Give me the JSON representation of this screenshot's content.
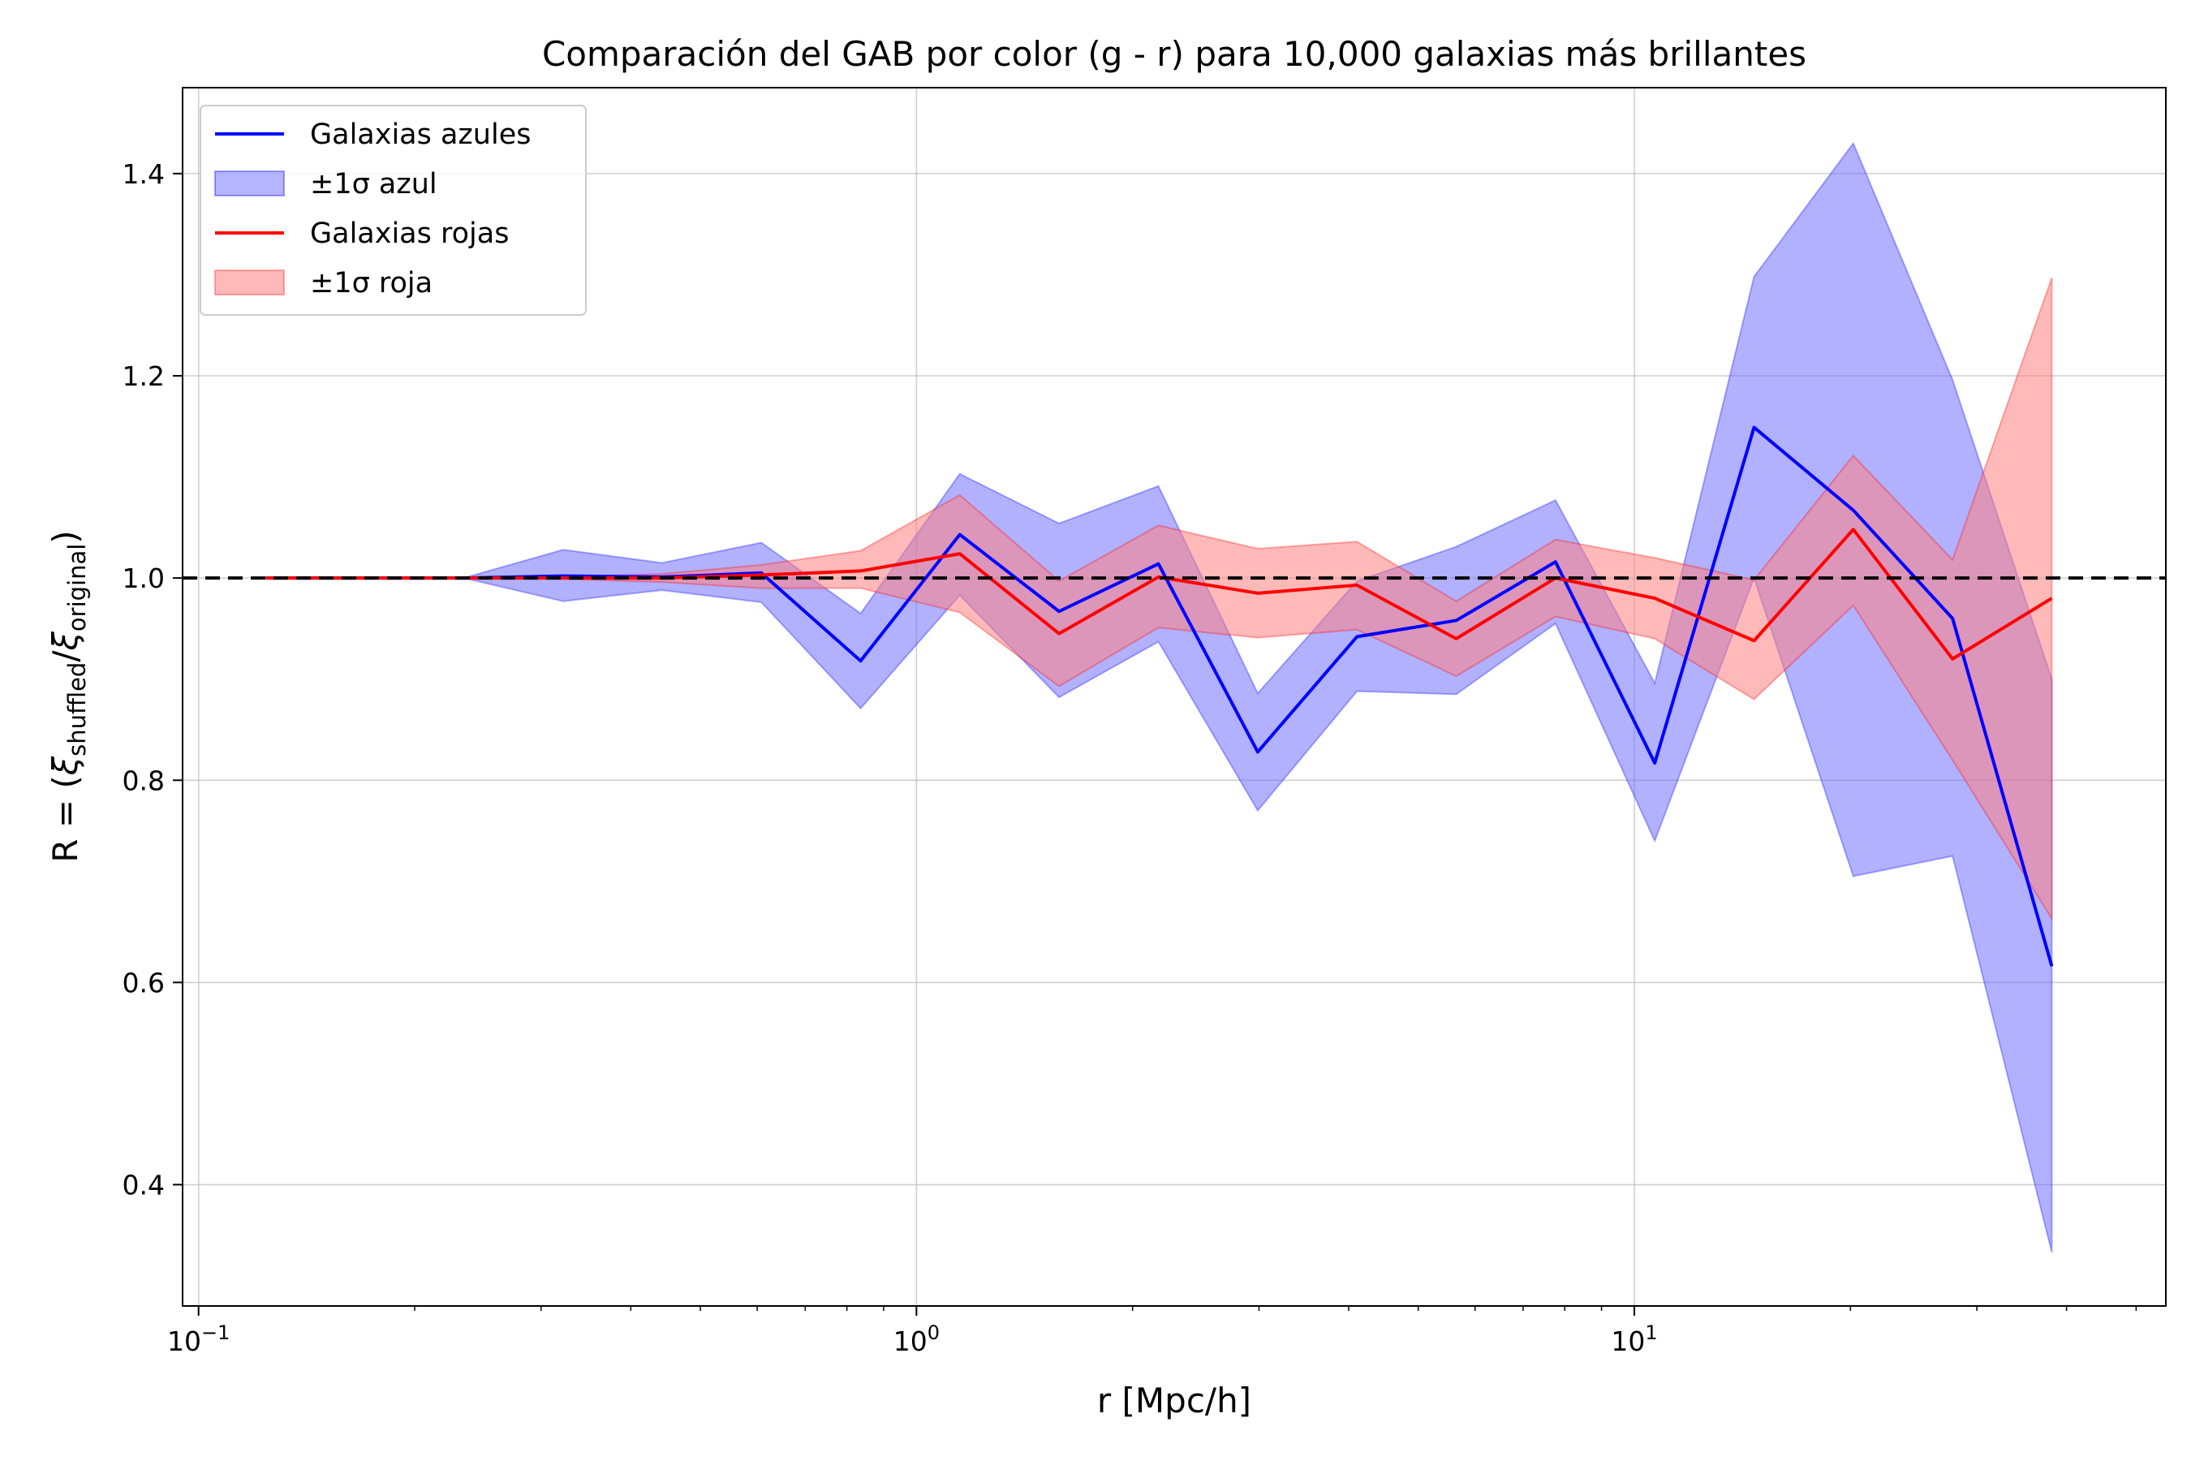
{
  "chart_data": {
    "type": "line",
    "title": "Comparación del GAB por color (g - r) para 10,000 galaxias más brillantes",
    "xlabel": "r [Mpc/h]",
    "ylabel": {
      "prefix": "R = (",
      "xi": "ξ",
      "sub1": "shuffled",
      "slash": "/",
      "sub2": "original",
      "suffix": ")"
    },
    "x_scale": "log",
    "xlim": [
      0.095,
      55
    ],
    "ylim": [
      0.28,
      1.485
    ],
    "grid": true,
    "legend_position": "upper-left",
    "reference_line": {
      "y": 1.0,
      "color": "#000000",
      "style": "dashed"
    },
    "x_ticks": [
      {
        "value": 0.1,
        "base": "10",
        "exp": "−1"
      },
      {
        "value": 1,
        "base": "10",
        "exp": "0"
      },
      {
        "value": 10,
        "base": "10",
        "exp": "1"
      }
    ],
    "y_ticks": [
      {
        "value": 0.4,
        "label": "0.4"
      },
      {
        "value": 0.6,
        "label": "0.6"
      },
      {
        "value": 0.8,
        "label": "0.8"
      },
      {
        "value": 1.0,
        "label": "1.0"
      },
      {
        "value": 1.2,
        "label": "1.2"
      },
      {
        "value": 1.4,
        "label": "1.4"
      }
    ],
    "x": [
      0.124,
      0.171,
      0.234,
      0.322,
      0.442,
      0.608,
      0.836,
      1.149,
      1.58,
      2.173,
      2.988,
      4.108,
      5.648,
      7.766,
      10.677,
      14.68,
      20.184,
      27.751,
      38.155
    ],
    "series": [
      {
        "name": "Galaxias azules",
        "band_name": "±1σ azul",
        "color": "#0000ff",
        "band_color": "#6a6aff",
        "y": [
          1.0,
          1.0,
          1.0,
          1.002,
          1.001,
          1.005,
          0.918,
          1.043,
          0.967,
          1.014,
          0.828,
          0.942,
          0.958,
          1.016,
          0.817,
          1.149,
          1.067,
          0.96,
          0.616
        ],
        "lower": [
          1.0,
          1.0,
          1.0,
          0.977,
          0.988,
          0.976,
          0.871,
          0.983,
          0.882,
          0.937,
          0.77,
          0.888,
          0.885,
          0.955,
          0.74,
          1.0,
          0.705,
          0.725,
          0.333
        ],
        "upper": [
          1.0,
          1.0,
          1.0,
          1.028,
          1.015,
          1.035,
          0.965,
          1.103,
          1.054,
          1.091,
          0.886,
          0.997,
          1.031,
          1.077,
          0.896,
          1.298,
          1.43,
          1.196,
          0.9
        ]
      },
      {
        "name": "Galaxias rojas",
        "band_name": "±1σ roja",
        "color": "#ff0000",
        "band_color": "#ff7f7f",
        "y": [
          1.0,
          1.0,
          1.0,
          1.0,
          1.0,
          1.003,
          1.007,
          1.024,
          0.945,
          1.001,
          0.985,
          0.993,
          0.94,
          1.0,
          0.98,
          0.938,
          1.048,
          0.92,
          0.98
        ],
        "lower": [
          1.0,
          1.0,
          1.0,
          0.999,
          0.996,
          0.99,
          0.99,
          0.966,
          0.893,
          0.951,
          0.941,
          0.949,
          0.903,
          0.962,
          0.94,
          0.88,
          0.973,
          0.82,
          0.663
        ],
        "upper": [
          1.0,
          1.0,
          1.0,
          1.001,
          1.004,
          1.013,
          1.027,
          1.082,
          0.997,
          1.052,
          1.029,
          1.036,
          0.977,
          1.038,
          1.02,
          0.998,
          1.121,
          1.018,
          1.297
        ]
      }
    ]
  }
}
